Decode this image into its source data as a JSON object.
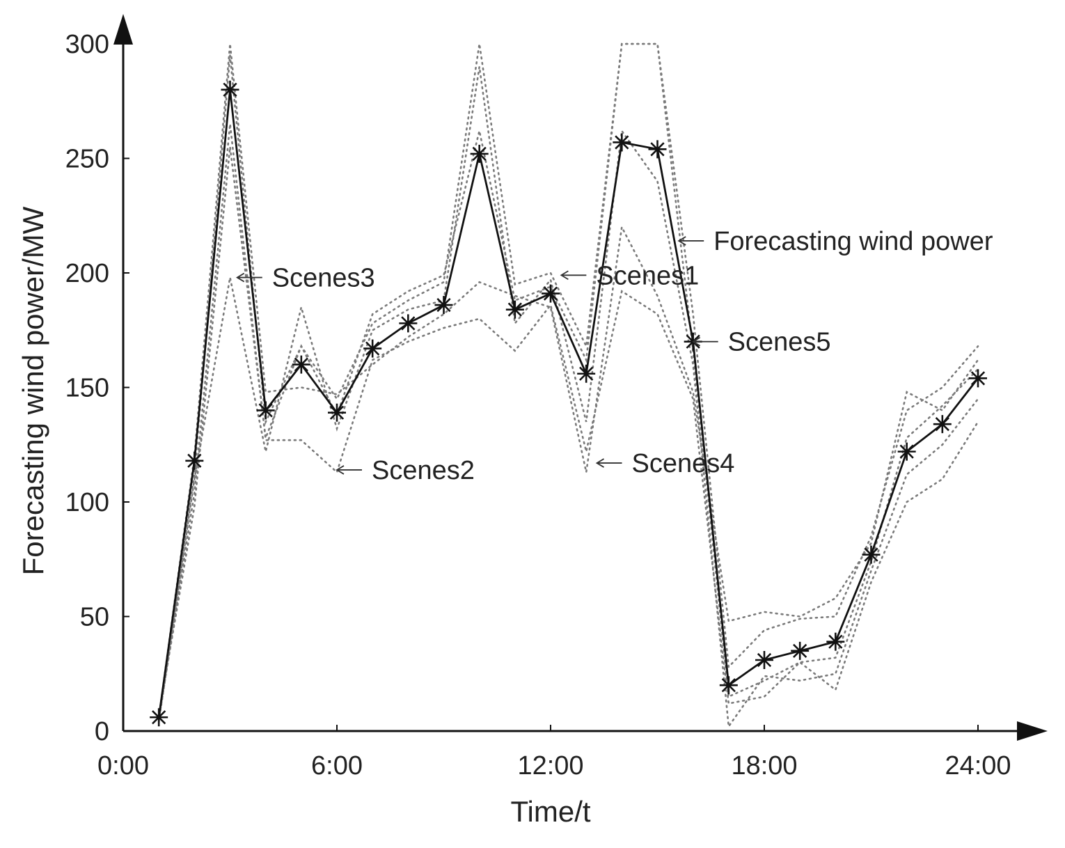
{
  "chart_data": {
    "type": "line",
    "title": "",
    "xlabel": "Time/t",
    "ylabel": "Forecasting wind power/MW",
    "xlim": [
      0,
      24
    ],
    "ylim": [
      0,
      300
    ],
    "grid": false,
    "x": [
      1,
      2,
      3,
      4,
      5,
      6,
      7,
      8,
      9,
      10,
      11,
      12,
      13,
      14,
      15,
      16,
      17,
      18,
      19,
      20,
      21,
      22,
      23,
      24
    ],
    "xticks": [
      0,
      6,
      12,
      18,
      24
    ],
    "xtick_labels": [
      "0:00",
      "6:00",
      "12:00",
      "18:00",
      "24:00"
    ],
    "yticks": [
      0,
      50,
      100,
      150,
      200,
      250,
      300
    ],
    "ytick_labels": [
      "0",
      "50",
      "100",
      "150",
      "200",
      "250",
      "300"
    ],
    "series": [
      {
        "name": "Forecasting wind power",
        "style": "solid-star",
        "values": [
          6,
          118,
          280,
          140,
          160,
          139,
          167,
          178,
          186,
          252,
          184,
          191,
          156,
          257,
          254,
          170,
          20,
          31,
          35,
          39,
          77,
          122,
          134,
          154
        ]
      },
      {
        "name": "Scenes1",
        "style": "dotted",
        "values": [
          5,
          112,
          295,
          135,
          168,
          145,
          178,
          188,
          196,
          300,
          195,
          200,
          168,
          300,
          300,
          182,
          28,
          44,
          49,
          50,
          85,
          140,
          150,
          168
        ]
      },
      {
        "name": "Scenes2",
        "style": "dotted",
        "values": [
          5,
          104,
          265,
          127,
          127,
          113,
          162,
          170,
          176,
          180,
          166,
          186,
          122,
          192,
          182,
          145,
          12,
          15,
          30,
          18,
          65,
          100,
          110,
          135
        ]
      },
      {
        "name": "Scenes3",
        "style": "dotted",
        "values": [
          4,
          110,
          198,
          122,
          185,
          132,
          175,
          184,
          188,
          290,
          178,
          197,
          135,
          262,
          240,
          160,
          2,
          24,
          22,
          25,
          70,
          112,
          125,
          145
        ]
      },
      {
        "name": "Scenes4",
        "style": "dotted",
        "values": [
          6,
          120,
          300,
          148,
          150,
          147,
          160,
          172,
          182,
          196,
          190,
          185,
          113,
          220,
          190,
          148,
          48,
          52,
          50,
          58,
          82,
          148,
          140,
          162
        ]
      },
      {
        "name": "Scenes5",
        "style": "dotted",
        "values": [
          7,
          98,
          255,
          128,
          168,
          138,
          182,
          192,
          199,
          262,
          188,
          194,
          162,
          300,
          300,
          166,
          15,
          22,
          30,
          32,
          74,
          128,
          142,
          158
        ]
      }
    ],
    "annotations": [
      {
        "text": "Forecasting wind power",
        "x": 15.3,
        "y": 214,
        "arrow_to": [
          15.6,
          214
        ]
      },
      {
        "text": "Scenes1",
        "x": 12.3,
        "y": 199,
        "arrow_to": [
          12.3,
          199
        ]
      },
      {
        "text": "Scenes3",
        "x": 3.2,
        "y": 198,
        "arrow_to": [
          3.2,
          198
        ]
      },
      {
        "text": "Scenes5",
        "x": 16.0,
        "y": 170,
        "arrow_to": [
          16.0,
          170
        ]
      },
      {
        "text": "Scenes2",
        "x": 6.0,
        "y": 114,
        "arrow_to": [
          6.0,
          114
        ]
      },
      {
        "text": "Scenes4",
        "x": 13.3,
        "y": 117,
        "arrow_to": [
          13.3,
          117
        ]
      }
    ]
  }
}
